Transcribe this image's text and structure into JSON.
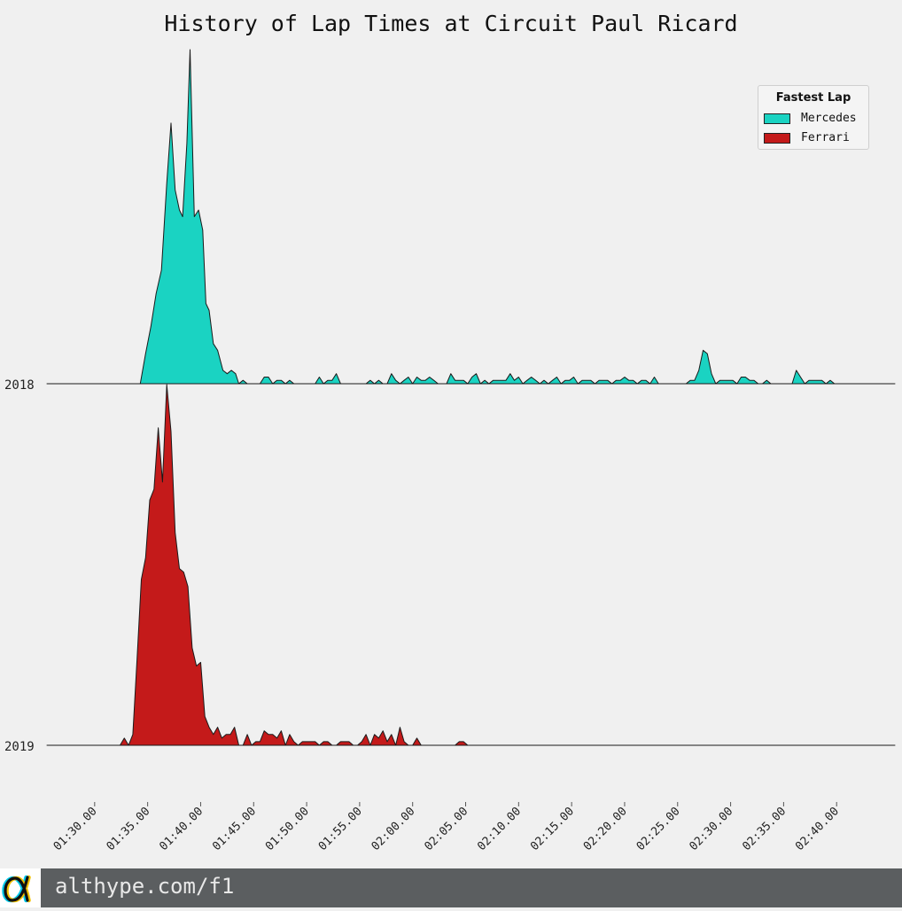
{
  "chart_data": {
    "type": "area",
    "title": "History of Lap Times at Circuit Paul Ricard",
    "xlabel": "",
    "ylabel": "",
    "x_ticks": [
      "01:30.00",
      "01:35.00",
      "01:40.00",
      "01:45.00",
      "01:50.00",
      "01:55.00",
      "02:00.00",
      "02:05.00",
      "02:10.00",
      "02:15.00",
      "02:20.00",
      "02:25.00",
      "02:30.00",
      "02:35.00",
      "02:40.00"
    ],
    "xlim": [
      85.5,
      165.5
    ],
    "rows": [
      "2018",
      "2019"
    ],
    "legend": {
      "title": "Fastest Lap",
      "position": "top-right"
    },
    "grid": false,
    "series": [
      {
        "name": "Mercedes",
        "row": "2018",
        "color": "#1ad3c2",
        "points": [
          [
            94.3,
            0
          ],
          [
            94.8,
            0.09
          ],
          [
            95.3,
            0.17
          ],
          [
            95.8,
            0.27
          ],
          [
            96.3,
            0.34
          ],
          [
            96.8,
            0.6
          ],
          [
            97.2,
            0.78
          ],
          [
            97.6,
            0.58
          ],
          [
            98.0,
            0.52
          ],
          [
            98.3,
            0.5
          ],
          [
            98.7,
            0.72
          ],
          [
            99.0,
            1.0
          ],
          [
            99.4,
            0.5
          ],
          [
            99.8,
            0.52
          ],
          [
            100.2,
            0.46
          ],
          [
            100.5,
            0.24
          ],
          [
            100.8,
            0.22
          ],
          [
            101.2,
            0.12
          ],
          [
            101.6,
            0.1
          ],
          [
            102.1,
            0.04
          ],
          [
            102.5,
            0.03
          ],
          [
            102.9,
            0.04
          ],
          [
            103.3,
            0.03
          ],
          [
            103.6,
            0.0
          ],
          [
            104.0,
            0.01
          ],
          [
            104.4,
            0.0
          ],
          [
            105.6,
            0.0
          ],
          [
            106.0,
            0.02
          ],
          [
            106.4,
            0.02
          ],
          [
            106.8,
            0.0
          ],
          [
            107.2,
            0.01
          ],
          [
            107.6,
            0.01
          ],
          [
            108.0,
            0.0
          ],
          [
            108.4,
            0.01
          ],
          [
            108.8,
            0.0
          ],
          [
            110.8,
            0.0
          ],
          [
            111.2,
            0.02
          ],
          [
            111.6,
            0.0
          ],
          [
            112.0,
            0.01
          ],
          [
            112.4,
            0.01
          ],
          [
            112.8,
            0.03
          ],
          [
            113.2,
            0.0
          ],
          [
            115.6,
            0.0
          ],
          [
            116.0,
            0.01
          ],
          [
            116.4,
            0.0
          ],
          [
            116.8,
            0.01
          ],
          [
            117.2,
            0.0
          ],
          [
            117.6,
            0.0
          ],
          [
            118.0,
            0.03
          ],
          [
            118.4,
            0.01
          ],
          [
            118.8,
            0.0
          ],
          [
            119.2,
            0.01
          ],
          [
            119.6,
            0.02
          ],
          [
            120.0,
            0.0
          ],
          [
            120.4,
            0.02
          ],
          [
            120.8,
            0.01
          ],
          [
            121.2,
            0.01
          ],
          [
            121.6,
            0.02
          ],
          [
            122.0,
            0.01
          ],
          [
            122.4,
            0.0
          ],
          [
            123.2,
            0.0
          ],
          [
            123.6,
            0.03
          ],
          [
            124.0,
            0.01
          ],
          [
            124.4,
            0.01
          ],
          [
            124.8,
            0.01
          ],
          [
            125.2,
            0.0
          ],
          [
            125.6,
            0.02
          ],
          [
            126.0,
            0.03
          ],
          [
            126.4,
            0.0
          ],
          [
            126.8,
            0.01
          ],
          [
            127.2,
            0.0
          ],
          [
            127.6,
            0.01
          ],
          [
            128.0,
            0.01
          ],
          [
            128.4,
            0.01
          ],
          [
            128.8,
            0.01
          ],
          [
            129.2,
            0.03
          ],
          [
            129.6,
            0.01
          ],
          [
            130.0,
            0.02
          ],
          [
            130.4,
            0.0
          ],
          [
            130.8,
            0.01
          ],
          [
            131.2,
            0.02
          ],
          [
            131.6,
            0.01
          ],
          [
            132.0,
            0.0
          ],
          [
            132.4,
            0.01
          ],
          [
            132.8,
            0.0
          ],
          [
            133.2,
            0.01
          ],
          [
            133.6,
            0.02
          ],
          [
            134.0,
            0.0
          ],
          [
            134.4,
            0.01
          ],
          [
            134.8,
            0.01
          ],
          [
            135.2,
            0.02
          ],
          [
            135.6,
            0.0
          ],
          [
            136.0,
            0.01
          ],
          [
            136.4,
            0.01
          ],
          [
            136.8,
            0.01
          ],
          [
            137.2,
            0.0
          ],
          [
            137.6,
            0.01
          ],
          [
            138.0,
            0.01
          ],
          [
            138.4,
            0.01
          ],
          [
            138.8,
            0.0
          ],
          [
            139.2,
            0.01
          ],
          [
            139.6,
            0.01
          ],
          [
            140.0,
            0.02
          ],
          [
            140.4,
            0.01
          ],
          [
            140.8,
            0.01
          ],
          [
            141.2,
            0.0
          ],
          [
            141.6,
            0.01
          ],
          [
            142.0,
            0.01
          ],
          [
            142.4,
            0.0
          ],
          [
            142.8,
            0.02
          ],
          [
            143.2,
            0.0
          ],
          [
            144.2,
            0.0
          ],
          [
            145.8,
            0.0
          ],
          [
            146.2,
            0.01
          ],
          [
            146.6,
            0.01
          ],
          [
            147.0,
            0.04
          ],
          [
            147.4,
            0.1
          ],
          [
            147.8,
            0.09
          ],
          [
            148.2,
            0.03
          ],
          [
            148.6,
            0.0
          ],
          [
            149.0,
            0.01
          ],
          [
            149.4,
            0.01
          ],
          [
            149.8,
            0.01
          ],
          [
            150.2,
            0.01
          ],
          [
            150.6,
            0.0
          ],
          [
            151.0,
            0.02
          ],
          [
            151.4,
            0.02
          ],
          [
            151.8,
            0.01
          ],
          [
            152.2,
            0.01
          ],
          [
            152.6,
            0.0
          ],
          [
            153.0,
            0.0
          ],
          [
            153.4,
            0.01
          ],
          [
            153.8,
            0.0
          ],
          [
            155.8,
            0.0
          ],
          [
            156.2,
            0.04
          ],
          [
            156.6,
            0.02
          ],
          [
            157.0,
            0.0
          ],
          [
            157.4,
            0.01
          ],
          [
            157.8,
            0.01
          ],
          [
            158.2,
            0.01
          ],
          [
            158.6,
            0.01
          ],
          [
            159.0,
            0.0
          ],
          [
            159.4,
            0.01
          ],
          [
            159.8,
            0.0
          ],
          [
            160.2,
            0.0
          ]
        ]
      },
      {
        "name": "Ferrari",
        "row": "2019",
        "color": "#c41a1a",
        "points": [
          [
            92.4,
            0
          ],
          [
            92.8,
            0.02
          ],
          [
            93.2,
            0.0
          ],
          [
            93.6,
            0.03
          ],
          [
            94.0,
            0.24
          ],
          [
            94.4,
            0.46
          ],
          [
            94.8,
            0.52
          ],
          [
            95.2,
            0.68
          ],
          [
            95.6,
            0.71
          ],
          [
            96.0,
            0.88
          ],
          [
            96.4,
            0.73
          ],
          [
            96.8,
            1.0
          ],
          [
            97.2,
            0.87
          ],
          [
            97.6,
            0.59
          ],
          [
            98.0,
            0.49
          ],
          [
            98.4,
            0.48
          ],
          [
            98.8,
            0.44
          ],
          [
            99.2,
            0.27
          ],
          [
            99.6,
            0.22
          ],
          [
            100.0,
            0.23
          ],
          [
            100.4,
            0.08
          ],
          [
            100.8,
            0.05
          ],
          [
            101.2,
            0.03
          ],
          [
            101.6,
            0.05
          ],
          [
            102.0,
            0.02
          ],
          [
            102.4,
            0.03
          ],
          [
            102.8,
            0.03
          ],
          [
            103.2,
            0.05
          ],
          [
            103.6,
            0.0
          ],
          [
            104.0,
            0.0
          ],
          [
            104.4,
            0.03
          ],
          [
            104.8,
            0.0
          ],
          [
            105.2,
            0.01
          ],
          [
            105.6,
            0.01
          ],
          [
            106.0,
            0.04
          ],
          [
            106.4,
            0.03
          ],
          [
            106.8,
            0.03
          ],
          [
            107.2,
            0.02
          ],
          [
            107.6,
            0.04
          ],
          [
            108.0,
            0.0
          ],
          [
            108.4,
            0.03
          ],
          [
            108.8,
            0.01
          ],
          [
            109.2,
            0.0
          ],
          [
            109.6,
            0.01
          ],
          [
            110.0,
            0.01
          ],
          [
            110.4,
            0.01
          ],
          [
            110.8,
            0.01
          ],
          [
            111.2,
            0.0
          ],
          [
            111.6,
            0.01
          ],
          [
            112.0,
            0.01
          ],
          [
            112.4,
            0.0
          ],
          [
            112.8,
            0.0
          ],
          [
            113.2,
            0.01
          ],
          [
            113.6,
            0.01
          ],
          [
            114.0,
            0.01
          ],
          [
            114.4,
            0.0
          ],
          [
            114.8,
            0.0
          ],
          [
            115.2,
            0.01
          ],
          [
            115.6,
            0.03
          ],
          [
            116.0,
            0.0
          ],
          [
            116.4,
            0.03
          ],
          [
            116.8,
            0.02
          ],
          [
            117.2,
            0.04
          ],
          [
            117.6,
            0.01
          ],
          [
            118.0,
            0.03
          ],
          [
            118.4,
            0.0
          ],
          [
            118.8,
            0.05
          ],
          [
            119.2,
            0.01
          ],
          [
            119.6,
            0.0
          ],
          [
            120.0,
            0.0
          ],
          [
            120.4,
            0.02
          ],
          [
            120.8,
            0.0
          ],
          [
            124.0,
            0.0
          ],
          [
            124.4,
            0.01
          ],
          [
            124.8,
            0.01
          ],
          [
            125.2,
            0.0
          ]
        ]
      }
    ]
  },
  "footer": {
    "logo_name": "althype-alpha-logo",
    "url_text": "althype.com/f1"
  }
}
